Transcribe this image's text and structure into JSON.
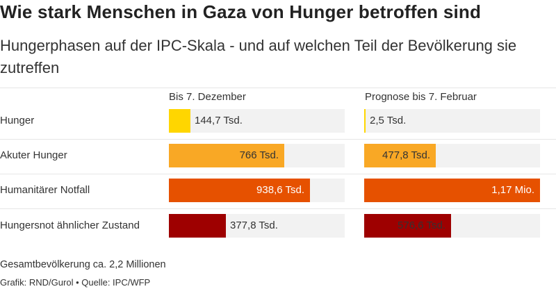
{
  "title": "Wie stark Menschen in Gaza von Hunger betroffen sind",
  "subtitle": "Hungerphasen auf der IPC-Skala - und auf welchen Teil der Bevölkerung sie zutreffen",
  "chart_data": {
    "type": "bar",
    "orientation": "horizontal",
    "panels": [
      "Bis 7. Dezember",
      "Prognose bis 7. Februar"
    ],
    "categories": [
      "Hunger",
      "Akuter Hunger",
      "Humanitärer Notfall",
      "Hungersnot ähnlicher Zustand"
    ],
    "series": [
      {
        "name": "Bis 7. Dezember",
        "values": [
          144700,
          766000,
          938600,
          377800
        ],
        "labels": [
          "144,7 Tsd.",
          "766 Tsd.",
          "938,6 Tsd.",
          "377,8 Tsd."
        ]
      },
      {
        "name": "Prognose bis 7. Februar",
        "values": [
          2500,
          477800,
          1170000,
          576600
        ],
        "labels": [
          "2,5 Tsd.",
          "477,8 Tsd.",
          "1,17 Mio.",
          "576,6 Tsd."
        ]
      }
    ],
    "category_colors": [
      "#ffd600",
      "#f9a825",
      "#e65100",
      "#9e0000"
    ],
    "label_colors": [
      "#333333",
      "#333333",
      "#ffffff",
      "#333333"
    ],
    "xlim": [
      0,
      1170000
    ]
  },
  "footer": {
    "note": "Gesamtbevölkerung ca. 2,2 Millionen",
    "credit": "Grafik: RND/Gurol • Quelle: IPC/WFP"
  }
}
